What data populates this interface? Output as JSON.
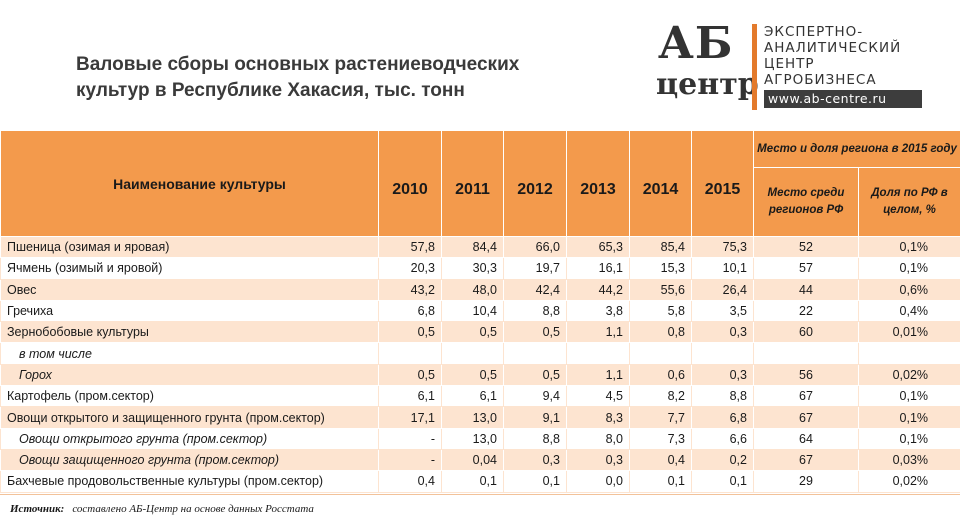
{
  "title_line1": "Валовые сборы основных растениеводческих",
  "title_line2": "культур  в Республике Хакасия, тыс. тонн",
  "logo": {
    "ab": "АБ",
    "centr": "центр",
    "line1": "ЭКСПЕРТНО-",
    "line2": "АНАЛИТИЧЕСКИЙ",
    "line3": "ЦЕНТР",
    "line4": "АГРОБИЗНЕСА",
    "site": "www.ab-centre.ru"
  },
  "header": {
    "name": "Наименование культуры",
    "years": [
      "2010",
      "2011",
      "2012",
      "2013",
      "2014",
      "2015"
    ],
    "group": "Место и доля региона в 2015 году",
    "rank": "Место среди регионов РФ",
    "share": "Доля по РФ в целом, %"
  },
  "rows": [
    {
      "name": "Пшеница (озимая и яровая)",
      "v": [
        "57,8",
        "84,4",
        "66,0",
        "65,3",
        "85,4",
        "75,3"
      ],
      "rank": "52",
      "share": "0,1%"
    },
    {
      "name": "Ячмень (озимый и яровой)",
      "v": [
        "20,3",
        "30,3",
        "19,7",
        "16,1",
        "15,3",
        "10,1"
      ],
      "rank": "57",
      "share": "0,1%"
    },
    {
      "name": "Овес",
      "v": [
        "43,2",
        "48,0",
        "42,4",
        "44,2",
        "55,6",
        "26,4"
      ],
      "rank": "44",
      "share": "0,6%"
    },
    {
      "name": "Гречиха",
      "v": [
        "6,8",
        "10,4",
        "8,8",
        "3,8",
        "5,8",
        "3,5"
      ],
      "rank": "22",
      "share": "0,4%"
    },
    {
      "name": "Зернобобовые культуры",
      "v": [
        "0,5",
        "0,5",
        "0,5",
        "1,1",
        "0,8",
        "0,3"
      ],
      "rank": "60",
      "share": "0,01%"
    },
    {
      "name": "в том числе",
      "v": [
        "",
        "",
        "",
        "",
        "",
        ""
      ],
      "rank": "",
      "share": "",
      "indent": true
    },
    {
      "name": "Горох",
      "v": [
        "0,5",
        "0,5",
        "0,5",
        "1,1",
        "0,6",
        "0,3"
      ],
      "rank": "56",
      "share": "0,02%",
      "indent": true
    },
    {
      "name": "Картофель (пром.сектор)",
      "v": [
        "6,1",
        "6,1",
        "9,4",
        "4,5",
        "8,2",
        "8,8"
      ],
      "rank": "67",
      "share": "0,1%"
    },
    {
      "name": "Овощи открытого и защищенного грунта (пром.сектор)",
      "v": [
        "17,1",
        "13,0",
        "9,1",
        "8,3",
        "7,7",
        "6,8"
      ],
      "rank": "67",
      "share": "0,1%"
    },
    {
      "name": "Овощи открытого грунта (пром.сектор)",
      "v": [
        "-",
        "13,0",
        "8,8",
        "8,0",
        "7,3",
        "6,6"
      ],
      "rank": "64",
      "share": "0,1%",
      "indent": true
    },
    {
      "name": "Овощи защищенного грунта (пром.сектор)",
      "v": [
        "-",
        "0,04",
        "0,3",
        "0,3",
        "0,4",
        "0,2"
      ],
      "rank": "67",
      "share": "0,03%",
      "indent": true
    },
    {
      "name": "Бахчевые продовольственные культуры (пром.сектор)",
      "v": [
        "0,4",
        "0,1",
        "0,1",
        "0,0",
        "0,1",
        "0,1"
      ],
      "rank": "29",
      "share": "0,02%"
    }
  ],
  "source_label": "Источник:",
  "source_text": "составлено АБ-Центр  на основе данных Росстата",
  "colors": {
    "header": "#f39a4c",
    "odd_row": "#fde4d0",
    "logo_bar": "#e37a2c"
  }
}
